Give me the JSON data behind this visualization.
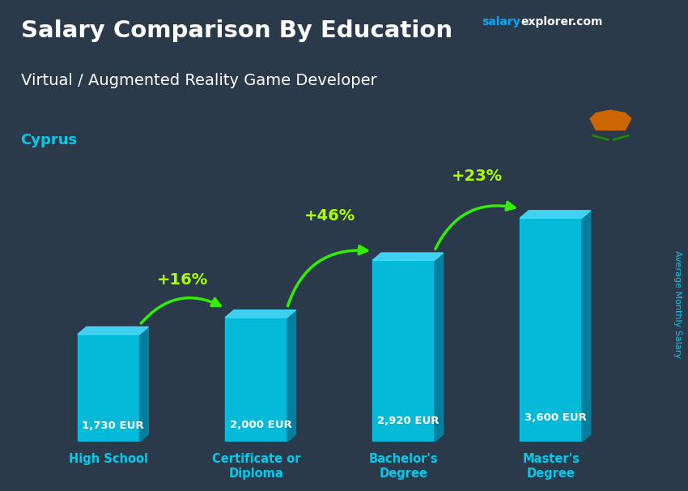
{
  "title": "Salary Comparison By Education",
  "subtitle": "Virtual / Augmented Reality Game Developer",
  "location": "Cyprus",
  "ylabel": "Average Monthly Salary",
  "categories": [
    "High School",
    "Certificate or\nDiploma",
    "Bachelor's\nDegree",
    "Master's\nDegree"
  ],
  "values": [
    1730,
    2000,
    2920,
    3600
  ],
  "labels": [
    "1,730 EUR",
    "2,000 EUR",
    "2,920 EUR",
    "3,600 EUR"
  ],
  "pct_labels": [
    "+16%",
    "+46%",
    "+23%"
  ],
  "bar_color_face": "#00ccee",
  "bar_color_side": "#0088aa",
  "bar_color_top": "#44ddff",
  "arrow_color": "#33ee00",
  "pct_color": "#aaff00",
  "title_color": "#ffffff",
  "subtitle_color": "#ffffff",
  "location_color": "#00ccee",
  "label_color": "#ffffff",
  "axis_label_color": "#00ccee",
  "website_color1": "#00aaff",
  "website_color2": "#ffffff",
  "bg_dark": "#2a3a4a",
  "header_bg": "#1e2d3d",
  "ylim": [
    0,
    4500
  ]
}
